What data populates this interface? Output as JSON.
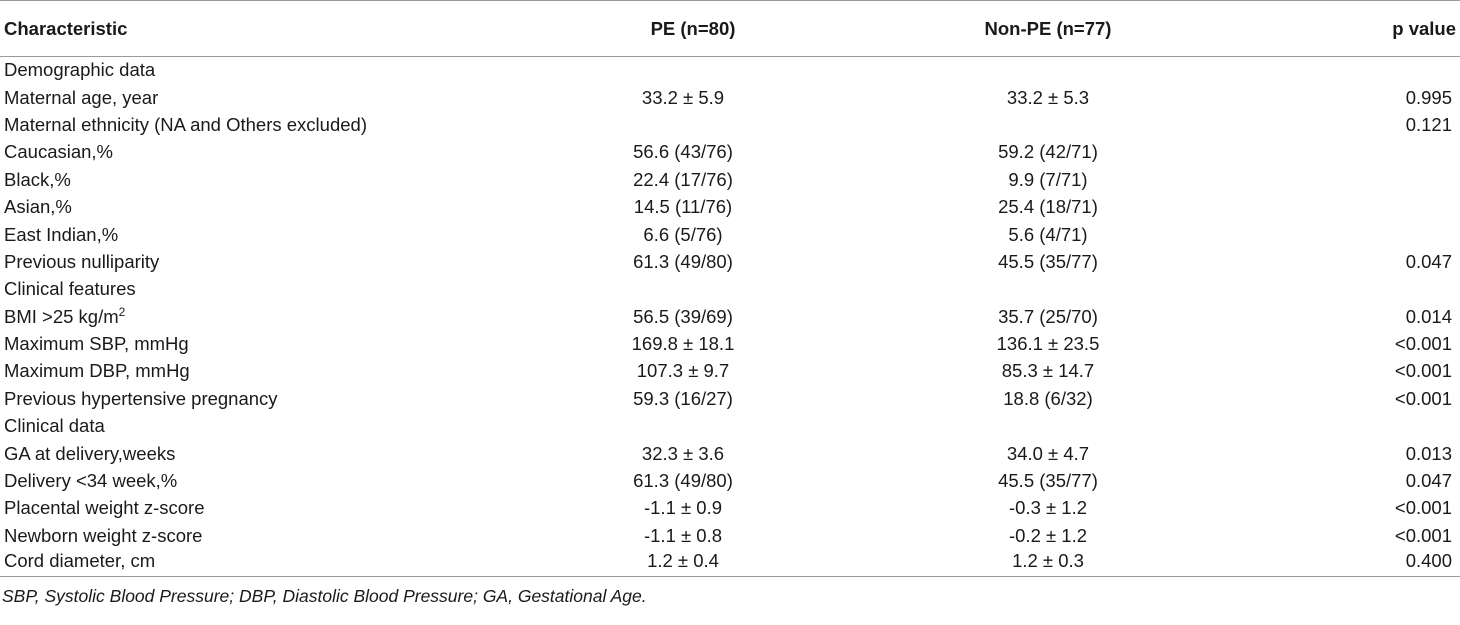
{
  "headers": {
    "characteristic": "Characteristic",
    "pe": "PE (n=80)",
    "non_pe": "Non-PE (n=77)",
    "p_value": "p value"
  },
  "rows": [
    {
      "label": "Demographic data",
      "pe": "",
      "non_pe": "",
      "p": ""
    },
    {
      "label": "Maternal age, year",
      "pe": "33.2 ± 5.9",
      "non_pe": "33.2 ± 5.3",
      "p": "0.995"
    },
    {
      "label": "Maternal ethnicity (NA and Others excluded)",
      "pe": "",
      "non_pe": "",
      "p": "0.121"
    },
    {
      "label": "Caucasian,%",
      "pe": "56.6 (43/76)",
      "non_pe": "59.2 (42/71)",
      "p": ""
    },
    {
      "label": "Black,%",
      "pe": "22.4 (17/76)",
      "non_pe": "9.9 (7/71)",
      "p": ""
    },
    {
      "label": "Asian,%",
      "pe": "14.5 (11/76)",
      "non_pe": "25.4 (18/71)",
      "p": ""
    },
    {
      "label": "East Indian,%",
      "pe": "6.6 (5/76)",
      "non_pe": "5.6 (4/71)",
      "p": ""
    },
    {
      "label": "Previous nulliparity",
      "pe": "61.3 (49/80)",
      "non_pe": "45.5 (35/77)",
      "p": "0.047"
    },
    {
      "label": "Clinical features",
      "pe": "",
      "non_pe": "",
      "p": ""
    },
    {
      "label": "BMI >25 kg/m",
      "label_sup": "2",
      "pe": "56.5 (39/69)",
      "non_pe": "35.7 (25/70)",
      "p": "0.014"
    },
    {
      "label": "Maximum SBP, mmHg",
      "pe": "169.8 ± 18.1",
      "non_pe": "136.1 ± 23.5",
      "p": "<0.001"
    },
    {
      "label": "Maximum DBP, mmHg",
      "pe": "107.3 ± 9.7",
      "non_pe": "85.3 ± 14.7",
      "p": "<0.001"
    },
    {
      "label": "Previous hypertensive pregnancy",
      "pe": "59.3 (16/27)",
      "non_pe": "18.8 (6/32)",
      "p": "<0.001"
    },
    {
      "label": "Clinical data",
      "pe": "",
      "non_pe": "",
      "p": ""
    },
    {
      "label": "GA at delivery,weeks",
      "pe": "32.3 ± 3.6",
      "non_pe": "34.0 ± 4.7",
      "p": "0.013"
    },
    {
      "label": "Delivery <34 week,%",
      "pe": "61.3 (49/80)",
      "non_pe": "45.5 (35/77)",
      "p": "0.047"
    },
    {
      "label": "Placental weight z-score",
      "pe": "-1.1 ± 0.9",
      "non_pe": "-0.3 ± 1.2",
      "p": "<0.001"
    },
    {
      "label": "Newborn weight z-score",
      "pe": "-1.1 ± 0.8",
      "non_pe": "-0.2 ± 1.2",
      "p": "<0.001"
    },
    {
      "label": "Cord diameter, cm",
      "pe": "1.2 ± 0.4",
      "non_pe": "1.2 ± 0.3",
      "p": "0.400"
    }
  ],
  "footnote": "SBP, Systolic Blood Pressure; DBP, Diastolic Blood Pressure; GA, Gestational Age."
}
